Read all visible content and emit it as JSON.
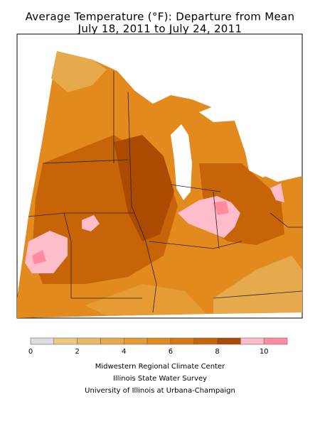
{
  "title": [
    "Average Temperature (°F): Departure from Mean",
    "July 18, 2011 to July 24, 2011"
  ],
  "legend": {
    "bins": [
      0,
      1,
      2,
      3,
      4,
      5,
      6,
      7,
      8,
      9,
      10,
      11
    ],
    "colors": [
      "#dcdcdc",
      "#ecc97c",
      "#e8b964",
      "#e6aa4c",
      "#e69b34",
      "#e28a1e",
      "#d87812",
      "#c86408",
      "#ad4a02",
      "#ffbccb",
      "#ff8c9e"
    ],
    "ticks": [
      0,
      2,
      4,
      6,
      8,
      10
    ]
  },
  "credits": [
    "Midwestern Regional Climate Center",
    "Illinois State Water Survey",
    "University of Illinois at Urbana-Champaign"
  ]
}
